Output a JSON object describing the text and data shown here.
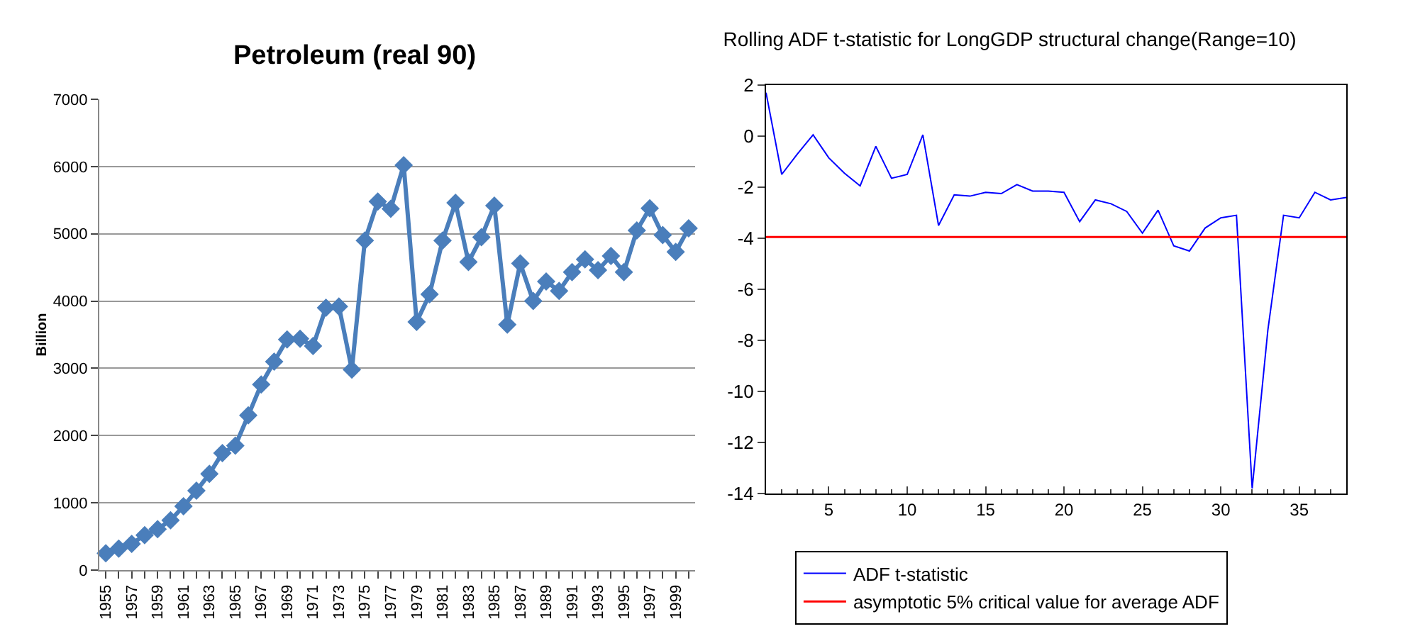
{
  "chart_data": [
    {
      "type": "line",
      "title": "Petroleum (real 90)",
      "ylabel": "Billion",
      "categories": [
        "1955",
        null,
        "1957",
        null,
        "1959",
        null,
        "1961",
        null,
        "1963",
        null,
        "1965",
        null,
        "1967",
        null,
        "1969",
        null,
        "1971",
        null,
        "1973",
        null,
        "1975",
        null,
        "1977",
        null,
        "1979",
        null,
        "1981",
        null,
        "1983",
        null,
        "1985",
        null,
        "1987",
        null,
        "1989",
        null,
        "1991",
        null,
        "1993",
        null,
        "1995",
        null,
        "1997",
        null,
        "1999",
        null
      ],
      "series": [
        {
          "color": "#4a7ebb",
          "values": [
            250,
            320,
            390,
            520,
            610,
            740,
            950,
            1180,
            1430,
            1740,
            1850,
            2300,
            2760,
            3100,
            3430,
            3440,
            3330,
            3900,
            3920,
            2980,
            4900,
            5480,
            5370,
            6020,
            3690,
            4100,
            4900,
            5460,
            4580,
            4950,
            5420,
            3650,
            4560,
            4000,
            4290,
            4150,
            4430,
            4620,
            4460,
            4670,
            4430,
            5050,
            5380,
            4980,
            4730,
            5080
          ]
        }
      ],
      "ylim": [
        0,
        7000
      ],
      "yticks": [
        0,
        1000,
        2000,
        3000,
        4000,
        5000,
        6000,
        7000
      ],
      "grid": "y",
      "legend": false,
      "marker": "diamond",
      "line_style": "solid"
    },
    {
      "type": "line",
      "title": "Rolling ADF t-statistic for LongGDP structural change(Range=10)",
      "x": [
        1,
        2,
        3,
        4,
        5,
        6,
        7,
        8,
        9,
        10,
        11,
        12,
        13,
        14,
        15,
        16,
        17,
        18,
        19,
        20,
        21,
        22,
        23,
        24,
        25,
        26,
        27,
        28,
        29,
        30,
        31,
        32,
        33,
        34,
        35,
        36,
        37,
        38
      ],
      "series": [
        {
          "name": "ADF t-statistic",
          "color": "#0000ff",
          "values": [
            1.7,
            -1.5,
            -0.7,
            0.05,
            -0.85,
            -1.45,
            -1.95,
            -0.4,
            -1.65,
            -1.5,
            0.05,
            -3.5,
            -2.3,
            -2.35,
            -2.2,
            -2.25,
            -1.9,
            -2.15,
            -2.15,
            -2.2,
            -3.35,
            -2.5,
            -2.65,
            -2.95,
            -3.8,
            -2.9,
            -4.3,
            -4.5,
            -3.6,
            -3.2,
            -3.1,
            -13.8,
            -7.6,
            -3.1,
            -3.2,
            -2.2,
            -2.5,
            -2.4
          ]
        }
      ],
      "ref_lines": [
        {
          "axis": "y",
          "value": -3.95,
          "label": "asymptotic 5% critical value for average ADF",
          "color": "#ff0000"
        }
      ],
      "xlim": [
        1,
        38
      ],
      "xticks": [
        5,
        10,
        15,
        20,
        25,
        30,
        35
      ],
      "ylim": [
        -14,
        2
      ],
      "yticks": [
        -14,
        -12,
        -10,
        -8,
        -6,
        -4,
        -2,
        0,
        2
      ],
      "grid": false,
      "legend": "bottom",
      "marker": "none",
      "line_style": "solid"
    }
  ]
}
